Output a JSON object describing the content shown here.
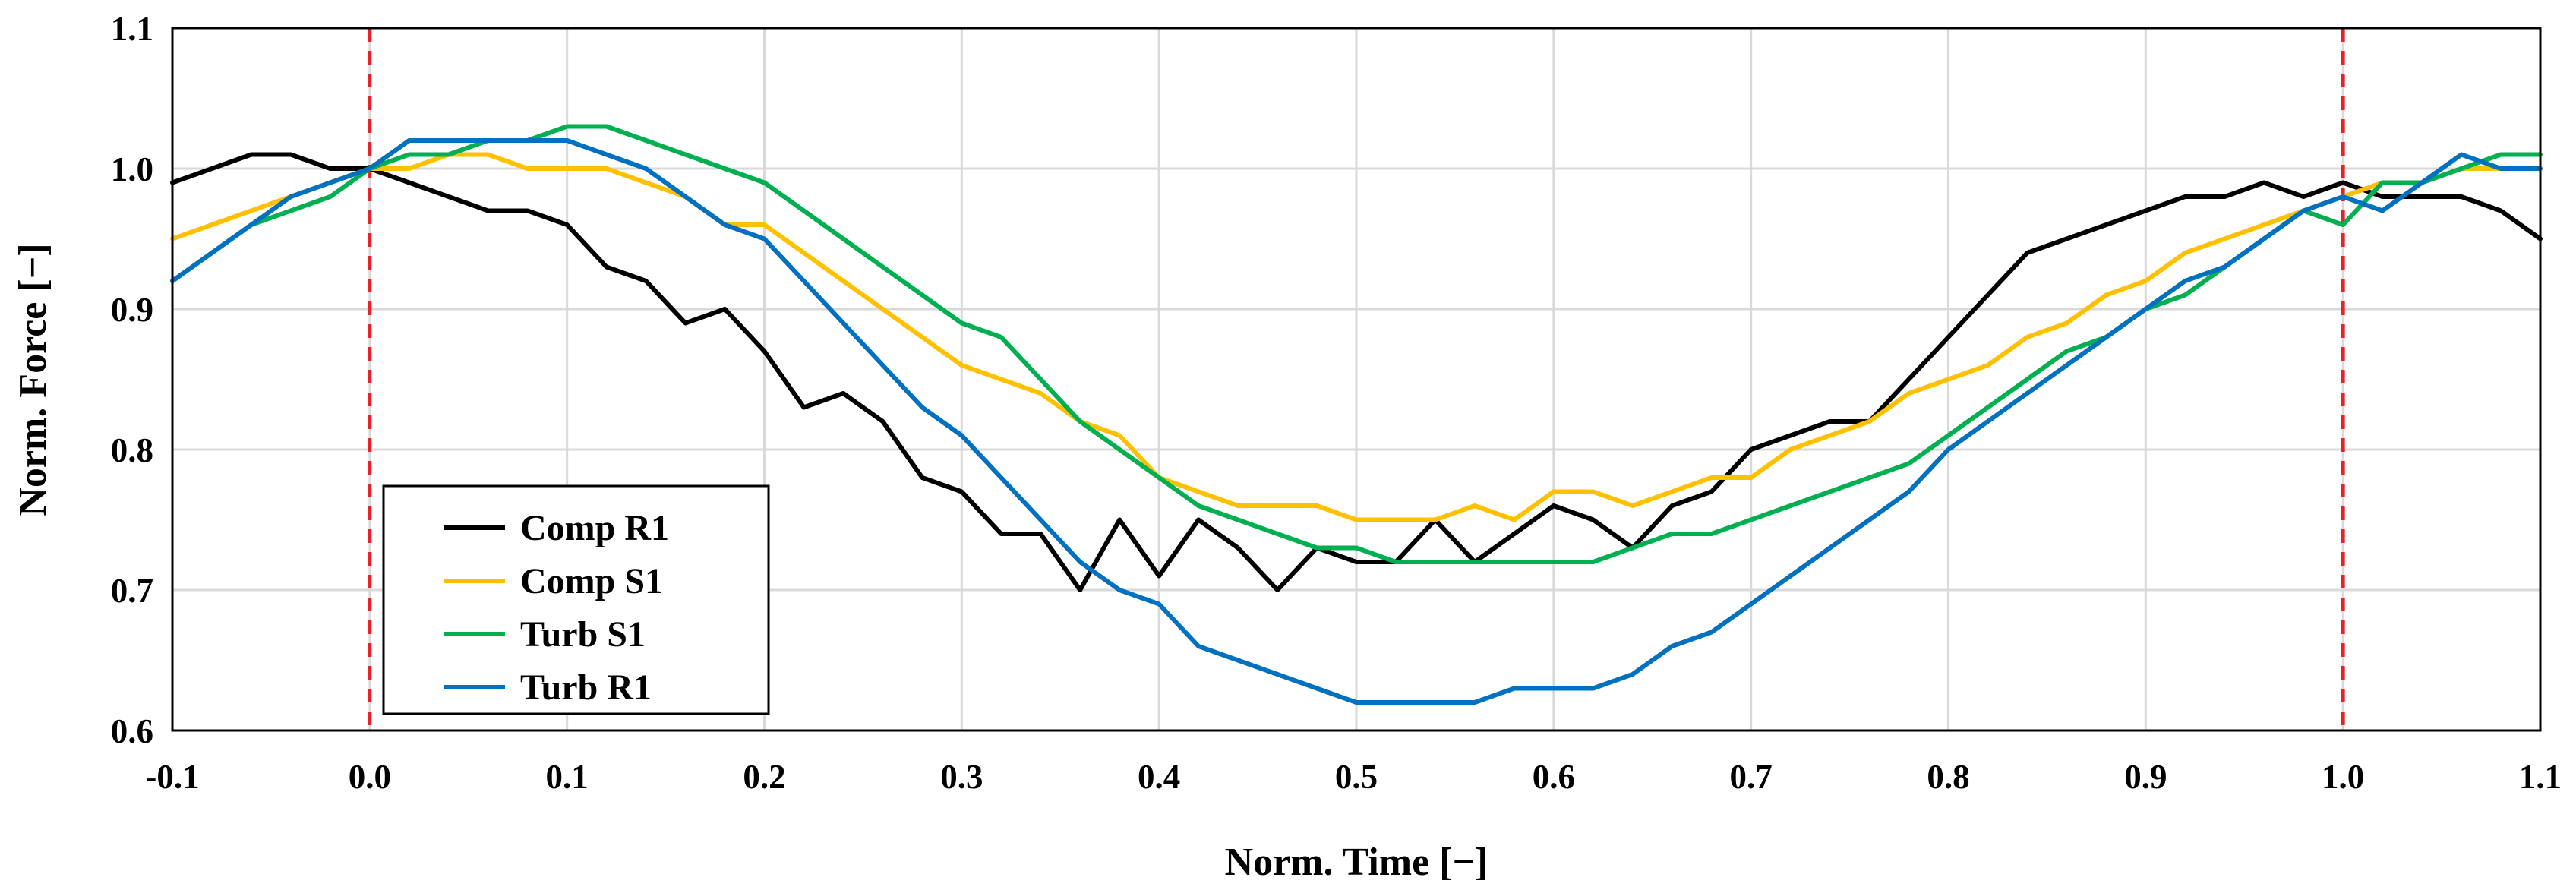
{
  "chart_data": {
    "type": "line",
    "title": "",
    "xlabel": "Norm. Time [−]",
    "ylabel": "Norm. Force [−]",
    "xlim": [
      -0.1,
      1.1
    ],
    "ylim": [
      0.6,
      1.1
    ],
    "xticks": [
      -0.1,
      0.0,
      0.1,
      0.2,
      0.3,
      0.4,
      0.5,
      0.6,
      0.7,
      0.8,
      0.9,
      1.0,
      1.1
    ],
    "xtick_labels": [
      "-0.1",
      "0.0",
      "0.1",
      "0.2",
      "0.3",
      "0.4",
      "0.5",
      "0.6",
      "0.7",
      "0.8",
      "0.9",
      "1.0",
      "1.1"
    ],
    "yticks": [
      0.6,
      0.7,
      0.8,
      0.9,
      1.0,
      1.1
    ],
    "ytick_labels": [
      "0.6",
      "0.7",
      "0.8",
      "0.9",
      "1.0",
      "1.1"
    ],
    "grid": true,
    "legend_position": "bottom-left",
    "vlines": [
      {
        "x": 0.0,
        "color": "#e8222a",
        "style": "dashed"
      },
      {
        "x": 1.0,
        "color": "#e8222a",
        "style": "dashed"
      }
    ],
    "series": [
      {
        "name": "Comp R1",
        "color": "#000000",
        "x": [
          -0.1,
          -0.08,
          -0.06,
          -0.04,
          -0.02,
          0.0,
          0.02,
          0.04,
          0.06,
          0.08,
          0.1,
          0.12,
          0.14,
          0.16,
          0.18,
          0.2,
          0.22,
          0.24,
          0.26,
          0.28,
          0.3,
          0.32,
          0.34,
          0.36,
          0.38,
          0.4,
          0.42,
          0.44,
          0.46,
          0.48,
          0.5,
          0.52,
          0.54,
          0.56,
          0.58,
          0.6,
          0.62,
          0.64,
          0.66,
          0.68,
          0.7,
          0.72,
          0.74,
          0.76,
          0.78,
          0.8,
          0.82,
          0.84,
          0.86,
          0.88,
          0.9,
          0.92,
          0.94,
          0.96,
          0.98,
          1.0,
          1.02,
          1.04,
          1.06,
          1.08,
          1.1
        ],
        "values": [
          0.99,
          1.0,
          1.01,
          1.01,
          1.0,
          1.0,
          0.99,
          0.98,
          0.97,
          0.97,
          0.96,
          0.93,
          0.92,
          0.89,
          0.9,
          0.87,
          0.83,
          0.84,
          0.82,
          0.78,
          0.77,
          0.74,
          0.74,
          0.7,
          0.75,
          0.71,
          0.75,
          0.73,
          0.7,
          0.73,
          0.72,
          0.72,
          0.75,
          0.72,
          0.74,
          0.76,
          0.75,
          0.73,
          0.76,
          0.77,
          0.8,
          0.81,
          0.82,
          0.82,
          0.85,
          0.88,
          0.91,
          0.94,
          0.95,
          0.96,
          0.97,
          0.98,
          0.98,
          0.99,
          0.98,
          0.99,
          0.98,
          0.98,
          0.98,
          0.97,
          0.95
        ]
      },
      {
        "name": "Comp S1",
        "color": "#ffc000",
        "x": [
          -0.1,
          -0.08,
          -0.06,
          -0.04,
          -0.02,
          0.0,
          0.02,
          0.04,
          0.06,
          0.08,
          0.1,
          0.12,
          0.14,
          0.16,
          0.18,
          0.2,
          0.22,
          0.24,
          0.26,
          0.28,
          0.3,
          0.32,
          0.34,
          0.36,
          0.38,
          0.4,
          0.42,
          0.44,
          0.46,
          0.48,
          0.5,
          0.52,
          0.54,
          0.56,
          0.58,
          0.6,
          0.62,
          0.64,
          0.66,
          0.68,
          0.7,
          0.72,
          0.74,
          0.76,
          0.78,
          0.8,
          0.82,
          0.84,
          0.86,
          0.88,
          0.9,
          0.92,
          0.94,
          0.96,
          0.98,
          1.0,
          1.02,
          1.04,
          1.06,
          1.08,
          1.1
        ],
        "values": [
          0.95,
          0.96,
          0.97,
          0.98,
          0.99,
          1.0,
          1.0,
          1.01,
          1.01,
          1.0,
          1.0,
          1.0,
          0.99,
          0.98,
          0.96,
          0.96,
          0.94,
          0.92,
          0.9,
          0.88,
          0.86,
          0.85,
          0.84,
          0.82,
          0.81,
          0.78,
          0.77,
          0.76,
          0.76,
          0.76,
          0.75,
          0.75,
          0.75,
          0.76,
          0.75,
          0.77,
          0.77,
          0.76,
          0.77,
          0.78,
          0.78,
          0.8,
          0.81,
          0.82,
          0.84,
          0.85,
          0.86,
          0.88,
          0.89,
          0.91,
          0.92,
          0.94,
          0.95,
          0.96,
          0.97,
          0.98,
          0.99,
          0.99,
          1.0,
          1.0,
          1.0
        ]
      },
      {
        "name": "Turb S1",
        "color": "#00b050",
        "x": [
          -0.1,
          -0.08,
          -0.06,
          -0.04,
          -0.02,
          0.0,
          0.02,
          0.04,
          0.06,
          0.08,
          0.1,
          0.12,
          0.14,
          0.16,
          0.18,
          0.2,
          0.22,
          0.24,
          0.26,
          0.28,
          0.3,
          0.32,
          0.34,
          0.36,
          0.38,
          0.4,
          0.42,
          0.44,
          0.46,
          0.48,
          0.5,
          0.52,
          0.54,
          0.56,
          0.58,
          0.6,
          0.62,
          0.64,
          0.66,
          0.68,
          0.7,
          0.72,
          0.74,
          0.76,
          0.78,
          0.8,
          0.82,
          0.84,
          0.86,
          0.88,
          0.9,
          0.92,
          0.94,
          0.96,
          0.98,
          1.0,
          1.02,
          1.04,
          1.06,
          1.08,
          1.1
        ],
        "values": [
          0.92,
          0.94,
          0.96,
          0.97,
          0.98,
          1.0,
          1.01,
          1.01,
          1.02,
          1.02,
          1.03,
          1.03,
          1.02,
          1.01,
          1.0,
          0.99,
          0.97,
          0.95,
          0.93,
          0.91,
          0.89,
          0.88,
          0.85,
          0.82,
          0.8,
          0.78,
          0.76,
          0.75,
          0.74,
          0.73,
          0.73,
          0.72,
          0.72,
          0.72,
          0.72,
          0.72,
          0.72,
          0.73,
          0.74,
          0.74,
          0.75,
          0.76,
          0.77,
          0.78,
          0.79,
          0.81,
          0.83,
          0.85,
          0.87,
          0.88,
          0.9,
          0.91,
          0.93,
          0.95,
          0.97,
          0.96,
          0.99,
          0.99,
          1.0,
          1.01,
          1.01
        ]
      },
      {
        "name": "Turb R1",
        "color": "#0070c0",
        "x": [
          -0.1,
          -0.08,
          -0.06,
          -0.04,
          -0.02,
          0.0,
          0.02,
          0.04,
          0.06,
          0.08,
          0.1,
          0.12,
          0.14,
          0.16,
          0.18,
          0.2,
          0.22,
          0.24,
          0.26,
          0.28,
          0.3,
          0.32,
          0.34,
          0.36,
          0.38,
          0.4,
          0.42,
          0.44,
          0.46,
          0.48,
          0.5,
          0.52,
          0.54,
          0.56,
          0.58,
          0.6,
          0.62,
          0.64,
          0.66,
          0.68,
          0.7,
          0.72,
          0.74,
          0.76,
          0.78,
          0.8,
          0.82,
          0.84,
          0.86,
          0.88,
          0.9,
          0.92,
          0.94,
          0.96,
          0.98,
          1.0,
          1.02,
          1.04,
          1.06,
          1.08,
          1.1
        ],
        "values": [
          0.92,
          0.94,
          0.96,
          0.98,
          0.99,
          1.0,
          1.02,
          1.02,
          1.02,
          1.02,
          1.02,
          1.01,
          1.0,
          0.98,
          0.96,
          0.95,
          0.92,
          0.89,
          0.86,
          0.83,
          0.81,
          0.78,
          0.75,
          0.72,
          0.7,
          0.69,
          0.66,
          0.65,
          0.64,
          0.63,
          0.62,
          0.62,
          0.62,
          0.62,
          0.63,
          0.63,
          0.63,
          0.64,
          0.66,
          0.67,
          0.69,
          0.71,
          0.73,
          0.75,
          0.77,
          0.8,
          0.82,
          0.84,
          0.86,
          0.88,
          0.9,
          0.92,
          0.93,
          0.95,
          0.97,
          0.98,
          0.97,
          0.99,
          1.01,
          1.0,
          1.0
        ]
      }
    ]
  }
}
